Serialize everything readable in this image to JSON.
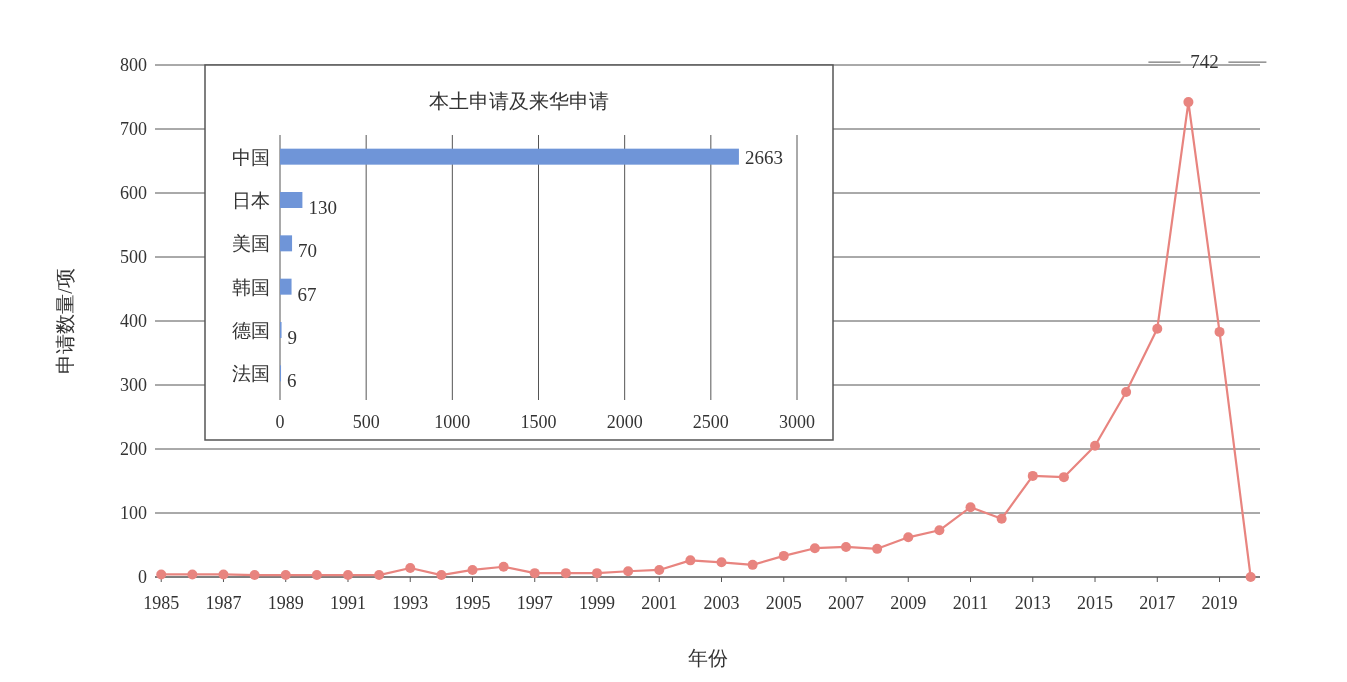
{
  "chart_data": [
    {
      "type": "line",
      "xlabel": "年份",
      "ylabel": "申请数量/项",
      "x": [
        1985,
        1986,
        1987,
        1988,
        1989,
        1990,
        1991,
        1992,
        1993,
        1994,
        1995,
        1996,
        1997,
        1998,
        1999,
        2000,
        2001,
        2002,
        2003,
        2004,
        2005,
        2006,
        2007,
        2008,
        2009,
        2010,
        2011,
        2012,
        2013,
        2014,
        2015,
        2016,
        2017,
        2018,
        2019,
        2020
      ],
      "series": [
        {
          "color": "#e8847f",
          "values": [
            4,
            4,
            4,
            3,
            3,
            3,
            3,
            3,
            14,
            3,
            11,
            16,
            6,
            6,
            6,
            9,
            11,
            26,
            23,
            19,
            33,
            45,
            47,
            44,
            62,
            73,
            109,
            91,
            158,
            156,
            205,
            289,
            388,
            742,
            383,
            0
          ],
          "value_labels": [
            null,
            null,
            null,
            null,
            null,
            null,
            null,
            null,
            null,
            null,
            null,
            null,
            null,
            null,
            null,
            null,
            null,
            null,
            null,
            null,
            null,
            null,
            null,
            null,
            null,
            null,
            null,
            null,
            null,
            null,
            null,
            null,
            null,
            "742",
            null,
            null
          ]
        }
      ],
      "xlim": [
        1984.8,
        2020.3
      ],
      "xticks": [
        1985,
        1987,
        1989,
        1991,
        1993,
        1995,
        1997,
        1999,
        2001,
        2003,
        2005,
        2007,
        2009,
        2011,
        2013,
        2015,
        2017,
        2019
      ],
      "ylim": [
        0,
        800
      ],
      "yticks": [
        0,
        100,
        200,
        300,
        400,
        500,
        600,
        700,
        800
      ],
      "grid": "y",
      "marker": "circle",
      "line_style": "solid"
    },
    {
      "type": "bar",
      "orientation": "horizontal",
      "title": "本土申请及来华申请",
      "categories": [
        "中国",
        "日本",
        "美国",
        "韩国",
        "德国",
        "法国"
      ],
      "values": [
        2663,
        130,
        70,
        67,
        9,
        6
      ],
      "color": "#6f95d8",
      "xlim": [
        0,
        3000
      ],
      "xticks": [
        0,
        500,
        1000,
        1500,
        2000,
        2500,
        3000
      ],
      "grid": "x",
      "data_labels": true
    }
  ]
}
